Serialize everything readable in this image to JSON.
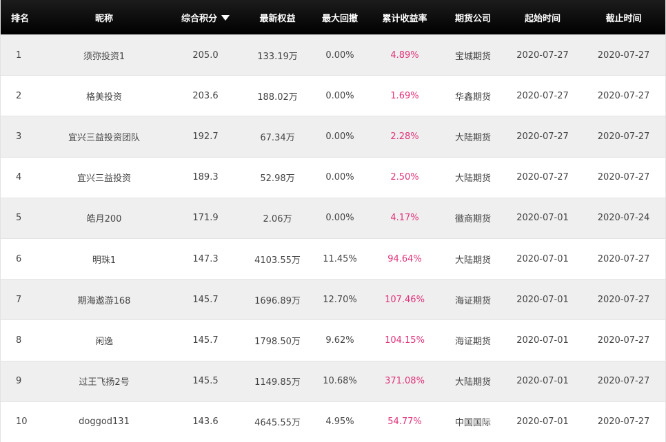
{
  "header": {
    "rank": "排名",
    "nickname": "昵称",
    "score": "综合积分",
    "equity": "最新权益",
    "drawdown": "最大回撤",
    "return": "累计收益率",
    "broker": "期货公司",
    "start": "起始时间",
    "end": "截止时间",
    "sort_icon": "triangle-down"
  },
  "colors": {
    "header_bg": "#000000",
    "positive_return": "#e0337a",
    "odd_row_bg": "#efefef"
  },
  "rows": [
    {
      "rank": "1",
      "name": "须弥投资1",
      "score": "205.0",
      "equity": "133.19万",
      "drawdown": "0.00%",
      "return": "4.89%",
      "broker": "宝城期货",
      "start": "2020-07-27",
      "end": "2020-07-27"
    },
    {
      "rank": "2",
      "name": "格美投资",
      "score": "203.6",
      "equity": "188.02万",
      "drawdown": "0.00%",
      "return": "1.69%",
      "broker": "华鑫期货",
      "start": "2020-07-27",
      "end": "2020-07-27"
    },
    {
      "rank": "3",
      "name": "宜兴三益投资团队",
      "score": "192.7",
      "equity": "67.34万",
      "drawdown": "0.00%",
      "return": "2.28%",
      "broker": "大陆期货",
      "start": "2020-07-27",
      "end": "2020-07-27"
    },
    {
      "rank": "4",
      "name": "宜兴三益投资",
      "score": "189.3",
      "equity": "52.98万",
      "drawdown": "0.00%",
      "return": "2.50%",
      "broker": "大陆期货",
      "start": "2020-07-27",
      "end": "2020-07-27"
    },
    {
      "rank": "5",
      "name": "皓月200",
      "score": "171.9",
      "equity": "2.06万",
      "drawdown": "0.00%",
      "return": "4.17%",
      "broker": "徽商期货",
      "start": "2020-07-01",
      "end": "2020-07-24"
    },
    {
      "rank": "6",
      "name": "明珠1",
      "score": "147.3",
      "equity": "4103.55万",
      "drawdown": "11.45%",
      "return": "94.64%",
      "broker": "大陆期货",
      "start": "2020-07-01",
      "end": "2020-07-27"
    },
    {
      "rank": "7",
      "name": "期海遨游168",
      "score": "145.7",
      "equity": "1696.89万",
      "drawdown": "12.70%",
      "return": "107.46%",
      "broker": "海证期货",
      "start": "2020-07-01",
      "end": "2020-07-27"
    },
    {
      "rank": "8",
      "name": "闲逸",
      "score": "145.7",
      "equity": "1798.50万",
      "drawdown": "9.62%",
      "return": "104.15%",
      "broker": "海证期货",
      "start": "2020-07-01",
      "end": "2020-07-27"
    },
    {
      "rank": "9",
      "name": "过王飞扬2号",
      "score": "145.5",
      "equity": "1149.85万",
      "drawdown": "10.68%",
      "return": "371.08%",
      "broker": "大陆期货",
      "start": "2020-07-01",
      "end": "2020-07-27"
    },
    {
      "rank": "10",
      "name": "doggod131",
      "score": "143.6",
      "equity": "4645.55万",
      "drawdown": "4.95%",
      "return": "54.77%",
      "broker": "中国国际",
      "start": "2020-07-01",
      "end": "2020-07-27"
    }
  ]
}
